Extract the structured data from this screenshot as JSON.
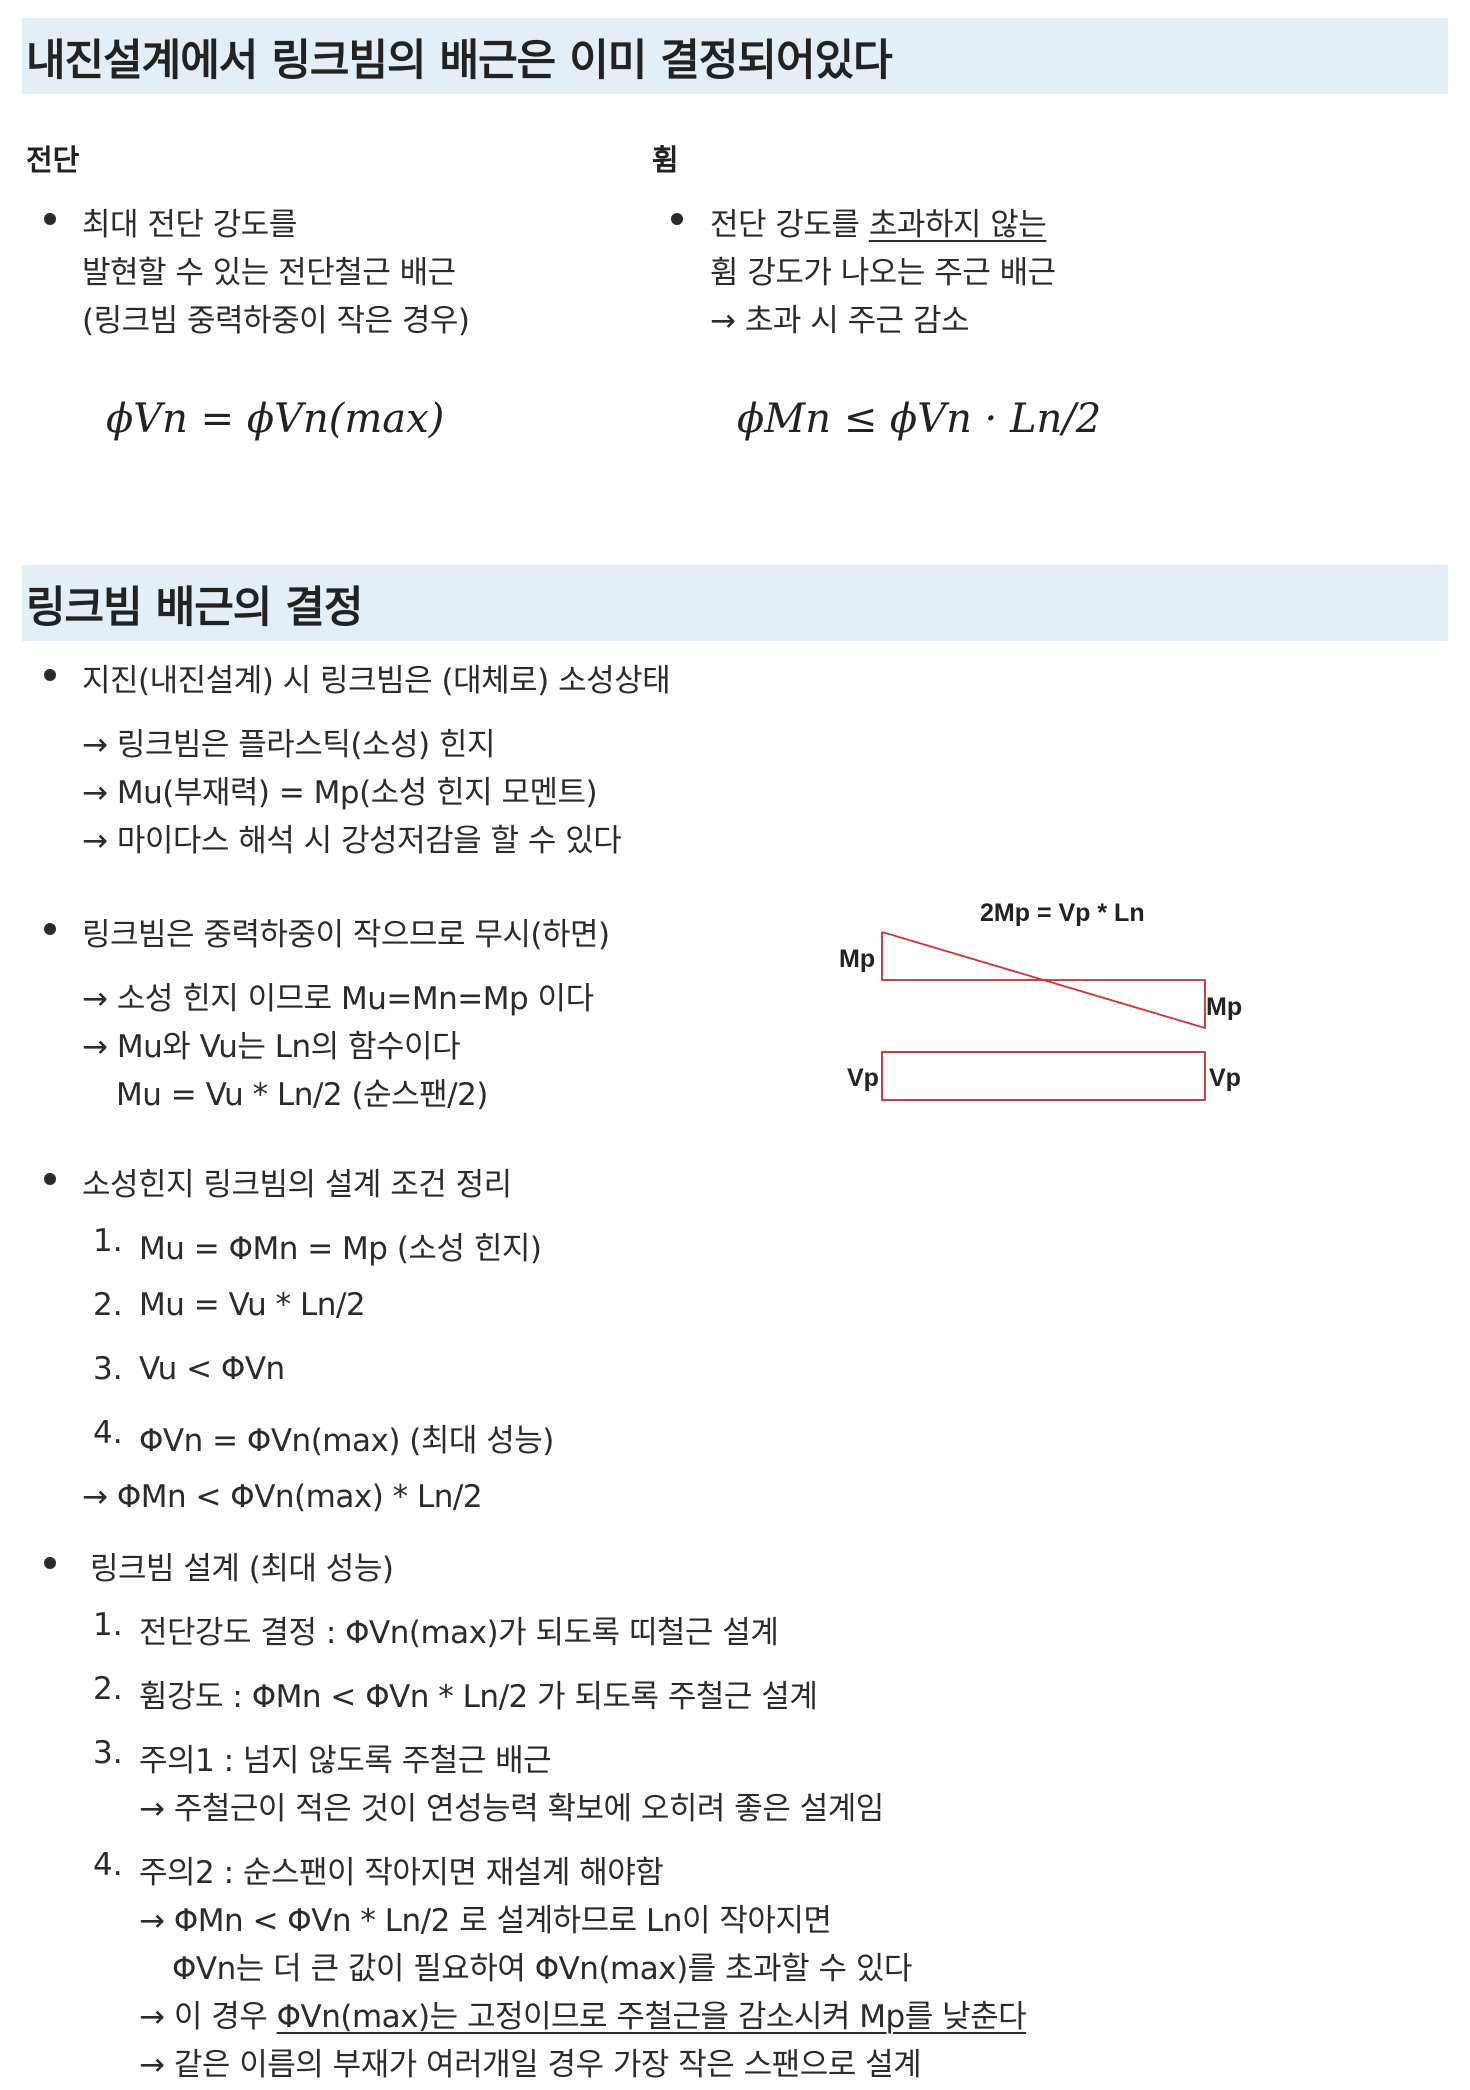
{
  "section1": {
    "title": "내진설계에서 링크빔의 배근은 이미 결정되어있다",
    "shear": {
      "heading": "전단",
      "lines": [
        "최대 전단 강도를",
        "발현할 수 있는 전단철근 배근",
        "(링크빔 중력하중이 작은 경우)"
      ],
      "formula": "ϕVn = ϕVn(max)"
    },
    "bending": {
      "heading": "휨",
      "line1_plain": "전단 강도를 ",
      "line1_underlined": "초과하지 않는",
      "line2": "휨 강도가 나오는 주근 배근",
      "line3": "→ 초과 시 주근 감소",
      "formula": "ϕMn ≤ ϕVn · Ln/2"
    }
  },
  "section2": {
    "title": "링크빔 배근의 결정",
    "b1": {
      "text": "지진(내진설계) 시 링크빔은 (대체로) 소성상태",
      "lines": [
        "→ 링크빔은 플라스틱(소성) 힌지",
        "→ Mu(부재력) = Mp(소성 힌지 모멘트)",
        "→ 마이다스 해석 시 강성저감을 할 수 있다"
      ]
    },
    "b2": {
      "text": "링크빔은 중력하중이 작으므로 무시(하면)",
      "lines": [
        "→ 소성 힌지 이므로 Mu=Mn=Mp 이다",
        "→ Mu와 Vu는 Ln의 함수이다",
        "Mu = Vu * Ln/2 (순스팬/2)"
      ]
    },
    "diagram": {
      "top_label": "2Mp = Vp * Ln",
      "moment_left": "Mp",
      "moment_right": "Mp",
      "shear_left": "Vp",
      "shear_right": "Vp",
      "line_color": "#d32f2f"
    },
    "b3": {
      "text": "소성힌지 링크빔의 설계 조건 정리",
      "items": [
        {
          "num": "1.",
          "text": "Mu = ΦMn = Mp (소성 힌지)"
        },
        {
          "num": "2.",
          "text": "Mu = Vu * Ln/2"
        },
        {
          "num": "3.",
          "text": "Vu < ΦVn"
        },
        {
          "num": "4.",
          "text": "ΦVn = ΦVn(max) (최대 성능)"
        }
      ],
      "conclusion": "→  ΦMn < ΦVn(max) * Ln/2"
    },
    "b4": {
      "text": "링크빔 설계 (최대 성능)",
      "items": [
        {
          "num": "1.",
          "text": "전단강도 결정 : ΦVn(max)가 되도록 띠철근 설계"
        },
        {
          "num": "2.",
          "text": "휨강도 : ΦMn < ΦVn * Ln/2 가 되도록 주철근 설계"
        },
        {
          "num": "3.",
          "text": "주의1 : 넘지 않도록 주철근 배근",
          "sub": "→ 주철근이 적은 것이 연성능력 확보에 오히려 좋은 설계임"
        },
        {
          "num": "4.",
          "text": "주의2 : 순스팬이 작아지면 재설계 해야함",
          "sub1": "→ ΦMn < ΦVn * Ln/2 로 설계하므로 Ln이 작아지면",
          "sub2": "ΦVn는 더 큰 값이 필요하여 ΦVn(max)를 초과할 수 있다",
          "sub3_plain": "→ 이 경우 ",
          "sub3_underlined": "ΦVn(max)는 고정이므로 주철근을 감소시켜 Mp를 낮춘다",
          "sub4": "→ 같은 이름의 부재가 여러개일 경우 가장 작은 스팬으로 설계"
        }
      ]
    }
  }
}
